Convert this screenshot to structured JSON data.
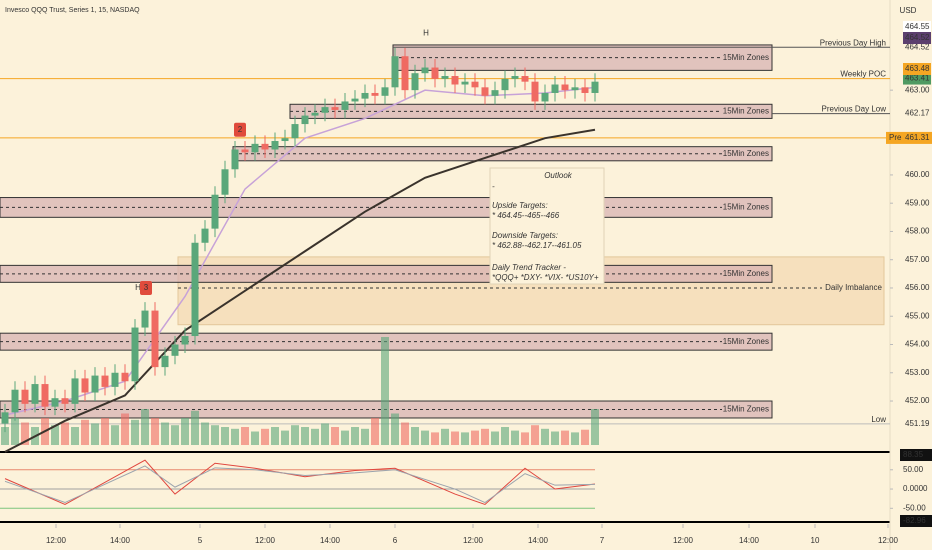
{
  "chart_data": {
    "type": "candlestick",
    "title": "Invesco QQQ Trust, Series 1, 15, NASDAQ",
    "currency": "USD",
    "xlim": [
      -0.5,
      88.5
    ],
    "xticks": [
      {
        "value": 5.1,
        "label": "12:00"
      },
      {
        "value": 11.5,
        "label": "14:00"
      },
      {
        "value": 19.5,
        "label": "5"
      },
      {
        "value": 26,
        "label": "12:00"
      },
      {
        "value": 32.5,
        "label": "14:00"
      },
      {
        "value": 39,
        "label": "6"
      },
      {
        "value": 46.8,
        "label": "12:00"
      },
      {
        "value": 53.3,
        "label": "14:00"
      },
      {
        "value": 59.7,
        "label": "7"
      },
      {
        "value": 67.8,
        "label": "12:00"
      },
      {
        "value": 74.4,
        "label": "14:00"
      },
      {
        "value": 81,
        "label": "10"
      },
      {
        "value": 88.3,
        "label": "12:00"
      }
    ],
    "ylim": [
      450.09,
      466.19
    ],
    "yticks": [
      {
        "value": 452,
        "label": "452.00"
      },
      {
        "value": 453,
        "label": "453.00"
      },
      {
        "value": 454,
        "label": "454.00"
      },
      {
        "value": 455,
        "label": "455.00"
      },
      {
        "value": 456,
        "label": "456.00"
      },
      {
        "value": 457,
        "label": "457.00"
      },
      {
        "value": 458,
        "label": "458.00"
      },
      {
        "value": 459,
        "label": "459.00"
      },
      {
        "value": 460,
        "label": "460.00"
      },
      {
        "value": 463,
        "label": "463.00"
      }
    ],
    "up_color": "#5aa77a",
    "down_color": "#ef6a62",
    "open": [
      451.2,
      451.6,
      452.4,
      451.9,
      452.6,
      451.8,
      452.1,
      451.9,
      452.8,
      452.3,
      452.9,
      452.5,
      453.0,
      452.7,
      454.6,
      455.2,
      453.2,
      453.6,
      454.0,
      454.3,
      457.6,
      458.1,
      459.3,
      460.2,
      460.9,
      460.8,
      461.1,
      460.9,
      461.2,
      461.3,
      461.8,
      462.1,
      462.2,
      462.4,
      462.3,
      462.6,
      462.7,
      462.9,
      462.8,
      463.1,
      464.2,
      463.0,
      463.6,
      463.8,
      463.4,
      463.5,
      463.2,
      463.3,
      463.1,
      462.8,
      463.0,
      463.4,
      463.5,
      463.3,
      462.6,
      462.9,
      463.2,
      463.0,
      463.1,
      462.9
    ],
    "high": [
      451.9,
      452.7,
      452.7,
      452.9,
      452.9,
      452.4,
      452.4,
      453.1,
      453.1,
      453.2,
      453.2,
      453.3,
      453.3,
      454.9,
      455.5,
      455.5,
      453.9,
      454.3,
      454.6,
      457.9,
      458.4,
      459.6,
      460.5,
      461.2,
      461.2,
      461.4,
      461.4,
      461.5,
      461.6,
      462.1,
      462.4,
      462.5,
      462.7,
      462.7,
      462.9,
      463.0,
      463.2,
      463.2,
      463.4,
      464.5,
      464.5,
      463.9,
      464.1,
      464.1,
      463.8,
      463.8,
      463.6,
      463.6,
      463.4,
      463.3,
      463.7,
      463.8,
      463.8,
      463.6,
      463.2,
      463.5,
      463.5,
      463.4,
      463.4,
      463.6
    ],
    "low": [
      450.9,
      451.3,
      451.6,
      451.6,
      451.5,
      451.5,
      451.6,
      451.6,
      452.0,
      452.0,
      452.2,
      452.2,
      452.4,
      452.4,
      454.3,
      452.9,
      452.9,
      453.3,
      453.7,
      454.0,
      457.3,
      457.8,
      459.0,
      459.9,
      460.5,
      460.5,
      460.6,
      460.6,
      460.9,
      461.0,
      461.5,
      461.8,
      461.9,
      462.0,
      462.0,
      462.3,
      462.4,
      462.5,
      462.5,
      462.8,
      462.7,
      462.7,
      463.3,
      463.1,
      463.1,
      462.9,
      462.9,
      462.8,
      462.5,
      462.5,
      462.7,
      463.1,
      463.0,
      462.3,
      462.3,
      462.6,
      462.7,
      462.7,
      462.6,
      462.6
    ],
    "close": [
      451.6,
      452.4,
      451.9,
      452.6,
      451.8,
      452.1,
      451.9,
      452.8,
      452.3,
      452.9,
      452.5,
      453.0,
      452.7,
      454.6,
      455.2,
      453.2,
      453.6,
      454.0,
      454.3,
      457.6,
      458.1,
      459.3,
      460.2,
      460.9,
      460.8,
      461.1,
      460.9,
      461.2,
      461.3,
      461.8,
      462.1,
      462.2,
      462.4,
      462.3,
      462.6,
      462.7,
      462.9,
      462.8,
      463.1,
      464.2,
      463.0,
      463.6,
      463.8,
      463.4,
      463.5,
      463.2,
      463.3,
      463.1,
      462.8,
      463.0,
      463.4,
      463.5,
      463.3,
      462.6,
      462.9,
      463.2,
      463.0,
      463.1,
      462.9,
      463.3
    ],
    "volume": [
      2,
      3,
      2.5,
      2,
      3,
      2.2,
      2.5,
      2,
      2.8,
      2.4,
      3,
      2.2,
      3.5,
      2.8,
      4,
      3,
      2.5,
      2.2,
      3,
      3.8,
      2.5,
      2.2,
      2,
      1.8,
      2,
      1.5,
      1.8,
      2,
      1.6,
      2.2,
      2,
      1.8,
      2.4,
      2,
      1.6,
      2,
      1.8,
      3,
      12,
      3.5,
      2.5,
      2,
      1.6,
      1.4,
      1.8,
      1.5,
      1.4,
      1.6,
      1.8,
      1.5,
      2,
      1.6,
      1.4,
      2.2,
      1.8,
      1.5,
      1.6,
      1.4,
      1.7,
      4
    ],
    "ma": [
      {
        "color": "#3a332c",
        "x": [
          0,
          6,
          12,
          18,
          24,
          30,
          36,
          42,
          48,
          54,
          59
        ],
        "values": [
          450.2,
          451.3,
          452.2,
          454.5,
          455.9,
          457.3,
          458.7,
          459.9,
          460.6,
          461.3,
          461.6
        ]
      },
      {
        "color": "#c7a2d8",
        "x": [
          0,
          6,
          12,
          18,
          24,
          30,
          36,
          42,
          48,
          54,
          59
        ],
        "values": [
          451.5,
          452.0,
          452.7,
          455.7,
          459.5,
          461.3,
          462.0,
          463.0,
          462.8,
          462.9,
          463.1
        ]
      }
    ],
    "zones": [
      {
        "label": "15Min Zones",
        "from": 463.7,
        "to": 464.6,
        "x0": 38.8,
        "x1": 76.7
      },
      {
        "label": "15Min Zones",
        "from": 462.0,
        "to": 462.5,
        "x0": 28.5,
        "x1": 76.7
      },
      {
        "label": "15Min Zones",
        "from": 460.5,
        "to": 461.0,
        "x0": 22.8,
        "x1": 76.7
      },
      {
        "label": "15Min Zones",
        "from": 458.5,
        "to": 459.2,
        "x0": -0.5,
        "x1": 76.7
      },
      {
        "label": "15Min Zones",
        "from": 456.2,
        "to": 456.8,
        "x0": -0.5,
        "x1": 76.7
      },
      {
        "label": "15Min Zones",
        "from": 453.8,
        "to": 454.4,
        "x0": -0.5,
        "x1": 76.7
      },
      {
        "label": "15Min Zones",
        "from": 451.4,
        "to": 452.0,
        "x0": -0.5,
        "x1": 76.7
      }
    ],
    "imbalance": {
      "label": "Daily Imbalance",
      "from": 454.7,
      "to": 457.1,
      "level": 456.0,
      "x0": 17.3,
      "x1": 87.9
    },
    "levels": [
      {
        "label": "Previous Day High",
        "value": 464.52,
        "color": "#555555",
        "x0": 38.8
      },
      {
        "label": "Weekly POC",
        "value": 463.41,
        "color": "#f5a623",
        "x0": -0.5
      },
      {
        "label": "Previous Day Low",
        "value": 462.17,
        "color": "#555555",
        "x0": 76.7
      },
      {
        "label": "Pre",
        "value": 461.31,
        "color": "#f5a623",
        "x0": -0.5
      },
      {
        "label": "Low",
        "value": 451.19,
        "color": "#bbbbbb",
        "x0": -0.5
      }
    ],
    "price_tags": [
      {
        "value": 464.55,
        "color": "#ffffff"
      },
      {
        "value": 464.52,
        "color": "#5b3f6e"
      },
      {
        "value": 463.48,
        "color": "#f5a623"
      }
    ],
    "annotations": [
      {
        "text": "H",
        "x": 42.1,
        "price": 465.0,
        "color": "#e04b3c"
      },
      {
        "text": "2",
        "x": 23.5,
        "price": 461.6,
        "color": "#e04b3c"
      },
      {
        "text": "H",
        "x": 13.3,
        "price": 456.0,
        "color": "#e04b3c"
      },
      {
        "text": "3",
        "x": 14.1,
        "price": 456.0,
        "color": "#e04b3c"
      }
    ],
    "outlook": {
      "title": "Outlook",
      "lines": [
        "-",
        "Upside Targets:",
        "* 464.45--465--466",
        "Downside Targets:",
        "* 462.88--462.17--461.05",
        "Daily Trend Tracker -",
        "*QQQ+   *DXY-   *VIX-   *US10Y+"
      ]
    },
    "oscillator": {
      "ylim": [
        -82.96,
        88.35
      ],
      "yticks": [
        88.35,
        {
          "value": 50,
          "label": "50.00"
        },
        {
          "value": 0,
          "label": "0.0000"
        },
        {
          "value": -50,
          "label": "-50.00"
        },
        -82.96
      ],
      "levels": [
        {
          "value": 50,
          "color": "#e8876d"
        },
        {
          "value": 0,
          "color": "#a0a0a0"
        },
        {
          "value": -50,
          "color": "#7cc47c"
        }
      ],
      "series": [
        {
          "color": "#e0463e",
          "x": [
            0,
            6,
            14,
            17,
            21,
            25,
            30,
            35,
            39,
            45,
            48,
            52,
            55,
            59
          ],
          "values": [
            27,
            -40,
            75,
            -13,
            67,
            54,
            32,
            48,
            54,
            -13,
            -40,
            54,
            0,
            13
          ]
        },
        {
          "color": "#9ba3ad",
          "x": [
            0,
            6,
            14,
            17,
            21,
            25,
            30,
            35,
            39,
            45,
            48,
            52,
            55,
            59
          ],
          "values": [
            20,
            -35,
            60,
            5,
            55,
            50,
            35,
            42,
            50,
            0,
            -35,
            40,
            10,
            12
          ]
        }
      ]
    }
  }
}
